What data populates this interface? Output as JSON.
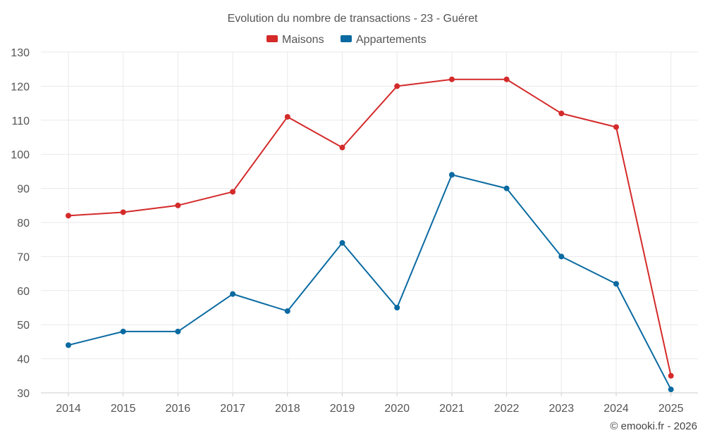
{
  "chart_data": {
    "type": "line",
    "title": "Evolution du nombre de transactions - 23 - Guéret",
    "categories": [
      "2014",
      "2015",
      "2016",
      "2017",
      "2018",
      "2019",
      "2020",
      "2021",
      "2022",
      "2023",
      "2024",
      "2025"
    ],
    "series": [
      {
        "name": "Maisons",
        "color": "#d42a2a",
        "values": [
          82,
          83,
          85,
          89,
          111,
          102,
          120,
          122,
          122,
          112,
          108,
          35
        ]
      },
      {
        "name": "Appartements",
        "color": "#0a6aa1",
        "values": [
          44,
          48,
          48,
          59,
          54,
          74,
          55,
          94,
          90,
          70,
          62,
          31
        ]
      }
    ],
    "ylim": [
      30,
      130
    ],
    "yticks": [
      30,
      40,
      50,
      60,
      70,
      80,
      90,
      100,
      110,
      120,
      130
    ],
    "xlabel": "",
    "ylabel": "",
    "grid": true,
    "legend_position": "top-center"
  },
  "credit": "© emooki.fr - 2026"
}
